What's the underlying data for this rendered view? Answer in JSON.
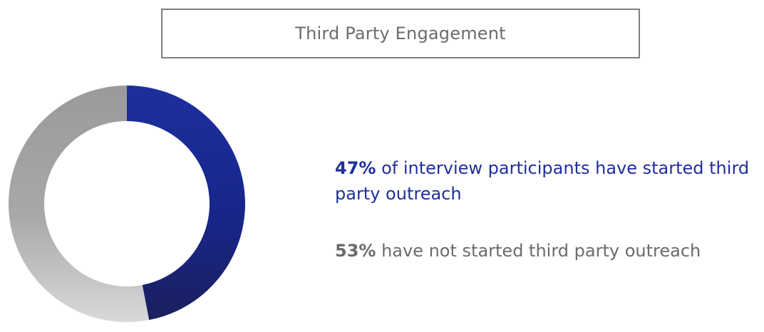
{
  "title": "Third Party Engagement",
  "chart_data": {
    "type": "pie",
    "donut": true,
    "title": "Third Party Engagement",
    "slices": [
      {
        "label": "have started third party outreach",
        "value": 47,
        "color": "#1a2a8a"
      },
      {
        "label": "have not started third party outreach",
        "value": 53,
        "color": "#a6a6a6"
      }
    ]
  },
  "stats": [
    {
      "pct": "47%",
      "text": " of interview participants have started third party outreach",
      "color": "#1f2f9c"
    },
    {
      "pct": "53%",
      "text": " have not started third party outreach",
      "color": "#6b6b6b"
    }
  ]
}
